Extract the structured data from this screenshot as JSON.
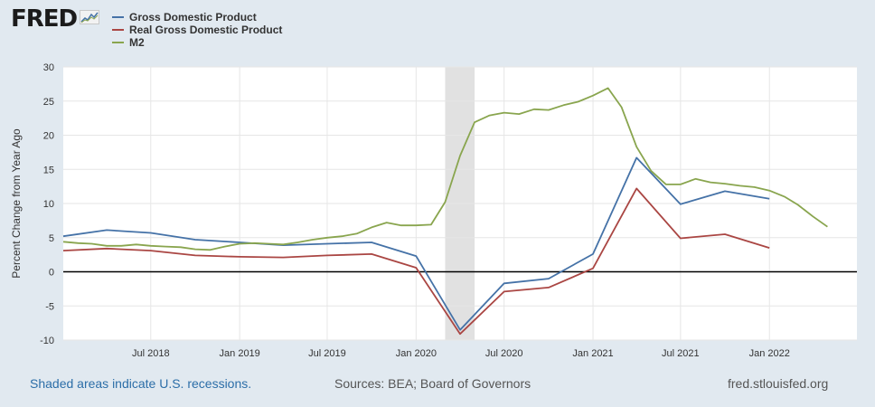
{
  "header": {
    "logo_text": "FRED",
    "logo_icon": "chart-line-icon"
  },
  "footer": {
    "recession_note": "Shaded areas indicate U.S. recessions.",
    "sources": "Sources: BEA; Board of Governors",
    "site": "fred.stlouisfed.org"
  },
  "colors": {
    "background": "#e1e9f0",
    "plot_background": "#ffffff",
    "recession_shade": "#e1e1e1",
    "zero_line": "#000000"
  },
  "chart_data": {
    "type": "line",
    "title": "",
    "xlabel": "",
    "ylabel": "Percent Change from Year Ago",
    "xlim": [
      "2018-01-01",
      "2022-07-01"
    ],
    "ylim": [
      -10,
      30
    ],
    "yticks": [
      -10,
      -5,
      0,
      5,
      10,
      15,
      20,
      25,
      30
    ],
    "xticks": [
      {
        "label": "Jul 2018",
        "date": "2018-07-01"
      },
      {
        "label": "Jan 2019",
        "date": "2019-01-01"
      },
      {
        "label": "Jul 2019",
        "date": "2019-07-01"
      },
      {
        "label": "Jan 2020",
        "date": "2020-01-01"
      },
      {
        "label": "Jul 2020",
        "date": "2020-07-01"
      },
      {
        "label": "Jan 2021",
        "date": "2021-01-01"
      },
      {
        "label": "Jul 2021",
        "date": "2021-07-01"
      },
      {
        "label": "Jan 2022",
        "date": "2022-01-01"
      }
    ],
    "grid": true,
    "legend_position": "top-left",
    "recessions": [
      {
        "start": "2020-03-01",
        "end": "2020-05-01"
      }
    ],
    "series": [
      {
        "name": "Gross Domestic Product",
        "color": "#4572a7",
        "points": [
          [
            "2018-01-01",
            5.2
          ],
          [
            "2018-04-01",
            6.1
          ],
          [
            "2018-07-01",
            5.7
          ],
          [
            "2018-10-01",
            4.7
          ],
          [
            "2019-01-01",
            4.3
          ],
          [
            "2019-04-01",
            3.9
          ],
          [
            "2019-07-01",
            4.1
          ],
          [
            "2019-10-01",
            4.3
          ],
          [
            "2020-01-01",
            2.3
          ],
          [
            "2020-04-01",
            -8.5
          ],
          [
            "2020-07-01",
            -1.7
          ],
          [
            "2020-10-01",
            -1.0
          ],
          [
            "2021-01-01",
            2.6
          ],
          [
            "2021-04-01",
            16.7
          ],
          [
            "2021-07-01",
            9.9
          ],
          [
            "2021-10-01",
            11.8
          ],
          [
            "2022-01-01",
            10.7
          ]
        ]
      },
      {
        "name": "Real Gross Domestic Product",
        "color": "#aa4643",
        "points": [
          [
            "2018-01-01",
            3.1
          ],
          [
            "2018-04-01",
            3.4
          ],
          [
            "2018-07-01",
            3.1
          ],
          [
            "2018-10-01",
            2.4
          ],
          [
            "2019-01-01",
            2.2
          ],
          [
            "2019-04-01",
            2.1
          ],
          [
            "2019-07-01",
            2.4
          ],
          [
            "2019-10-01",
            2.6
          ],
          [
            "2020-01-01",
            0.6
          ],
          [
            "2020-04-01",
            -9.1
          ],
          [
            "2020-07-01",
            -2.9
          ],
          [
            "2020-10-01",
            -2.3
          ],
          [
            "2021-01-01",
            0.5
          ],
          [
            "2021-04-01",
            12.2
          ],
          [
            "2021-07-01",
            4.9
          ],
          [
            "2021-10-01",
            5.5
          ],
          [
            "2022-01-01",
            3.5
          ]
        ]
      },
      {
        "name": "M2",
        "color": "#89a54e",
        "points": [
          [
            "2018-01-01",
            4.4
          ],
          [
            "2018-02-01",
            4.2
          ],
          [
            "2018-03-01",
            4.1
          ],
          [
            "2018-04-01",
            3.8
          ],
          [
            "2018-05-01",
            3.8
          ],
          [
            "2018-06-01",
            4.0
          ],
          [
            "2018-07-01",
            3.8
          ],
          [
            "2018-08-01",
            3.7
          ],
          [
            "2018-09-01",
            3.6
          ],
          [
            "2018-10-01",
            3.3
          ],
          [
            "2018-11-01",
            3.2
          ],
          [
            "2018-12-01",
            3.7
          ],
          [
            "2019-01-01",
            4.1
          ],
          [
            "2019-02-01",
            4.2
          ],
          [
            "2019-03-01",
            4.1
          ],
          [
            "2019-04-01",
            4.0
          ],
          [
            "2019-05-01",
            4.3
          ],
          [
            "2019-06-01",
            4.7
          ],
          [
            "2019-07-01",
            5.0
          ],
          [
            "2019-08-01",
            5.2
          ],
          [
            "2019-09-01",
            5.6
          ],
          [
            "2019-10-01",
            6.5
          ],
          [
            "2019-11-01",
            7.2
          ],
          [
            "2019-12-01",
            6.8
          ],
          [
            "2020-01-01",
            6.8
          ],
          [
            "2020-02-01",
            6.9
          ],
          [
            "2020-03-01",
            10.2
          ],
          [
            "2020-04-01",
            17.0
          ],
          [
            "2020-05-01",
            21.9
          ],
          [
            "2020-06-01",
            22.9
          ],
          [
            "2020-07-01",
            23.3
          ],
          [
            "2020-08-01",
            23.1
          ],
          [
            "2020-09-01",
            23.8
          ],
          [
            "2020-10-01",
            23.7
          ],
          [
            "2020-11-01",
            24.4
          ],
          [
            "2020-12-01",
            24.9
          ],
          [
            "2021-01-01",
            25.8
          ],
          [
            "2021-02-01",
            26.9
          ],
          [
            "2021-03-01",
            24.1
          ],
          [
            "2021-04-01",
            18.3
          ],
          [
            "2021-05-01",
            14.8
          ],
          [
            "2021-06-01",
            12.8
          ],
          [
            "2021-07-01",
            12.8
          ],
          [
            "2021-08-01",
            13.6
          ],
          [
            "2021-09-01",
            13.1
          ],
          [
            "2021-10-01",
            12.9
          ],
          [
            "2021-11-01",
            12.6
          ],
          [
            "2021-12-01",
            12.4
          ],
          [
            "2022-01-01",
            11.9
          ],
          [
            "2022-02-01",
            11.0
          ],
          [
            "2022-03-01",
            9.8
          ],
          [
            "2022-04-01",
            8.1
          ],
          [
            "2022-05-01",
            6.6
          ]
        ]
      }
    ]
  }
}
